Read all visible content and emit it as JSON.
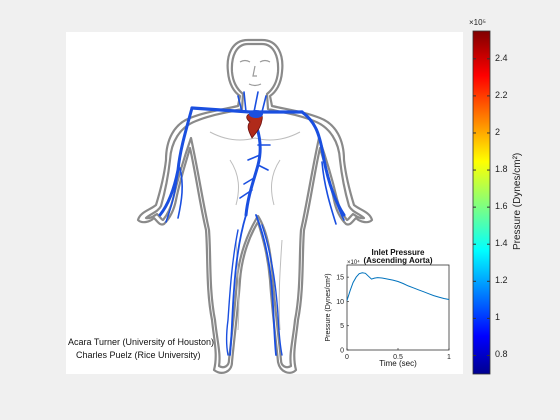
{
  "credits": {
    "line1": "Acara Turner (University of Houston)",
    "line2": "Charles Puelz (Rice University)"
  },
  "colorbar": {
    "label": "Pressure (Dynes/cm²)",
    "exponent": "×10⁵",
    "range": [
      0.7,
      2.55
    ],
    "ticks": [
      "0.8",
      "1",
      "1.2",
      "1.4",
      "1.6",
      "1.8",
      "2",
      "2.2",
      "2.4"
    ],
    "colormap": "jet"
  },
  "vessel_color": "#1a4fe0",
  "heart_color": "#b02a1a",
  "chart_data": {
    "type": "line",
    "title": "Inlet Pressure",
    "subtitle": "(Ascending Aorta)",
    "xlabel": "Time (sec)",
    "ylabel": "Pressure (Dynes/cm²)",
    "y_exponent": "×10⁴",
    "xlim": [
      0,
      1
    ],
    "ylim": [
      0,
      17.5
    ],
    "x_ticks": [
      "0",
      "0.5",
      "1"
    ],
    "y_ticks": [
      "0",
      "5",
      "10",
      "15"
    ],
    "grid": false,
    "series": [
      {
        "color": "#0072bd",
        "x": [
          0,
          0.03,
          0.06,
          0.09,
          0.12,
          0.15,
          0.18,
          0.21,
          0.24,
          0.27,
          0.3,
          0.35,
          0.4,
          0.45,
          0.5,
          0.55,
          0.6,
          0.65,
          0.7,
          0.75,
          0.8,
          0.85,
          0.9,
          0.95,
          1.0
        ],
        "y": [
          10.2,
          12.2,
          13.9,
          15.0,
          15.7,
          15.9,
          15.8,
          15.2,
          14.6,
          14.8,
          14.9,
          14.8,
          14.6,
          14.4,
          14.1,
          13.7,
          13.2,
          12.8,
          12.4,
          12.0,
          11.6,
          11.2,
          10.9,
          10.6,
          10.4
        ]
      }
    ]
  }
}
